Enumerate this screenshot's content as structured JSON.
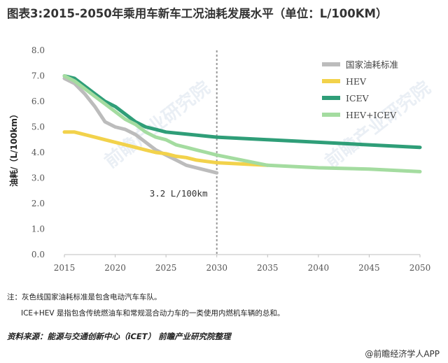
{
  "page": {
    "title": "图表3:2015-2050年乘用车新车工况油耗发展水平（单位：L/100KM）",
    "notes": [
      "注：灰色线国家油耗标准是包含电动汽车车队。",
      "ICE+HEV 是指包含传统燃油车和常规混合动力车的一类使用内燃机车辆的总和。"
    ],
    "source": "资料来源：能源与交通创新中心（iCET） 前瞻产业研究院整理",
    "brand": "@前瞻经济学人APP",
    "watermarks": [
      "前瞻产业研究院",
      "前瞻产业研究院"
    ]
  },
  "chart_data": {
    "type": "line",
    "ylabel": "油耗/（L/100km）",
    "xlabel": "",
    "x": [
      2015,
      2016,
      2017,
      2018,
      2019,
      2020,
      2021,
      2022,
      2023,
      2024,
      2025,
      2026,
      2027,
      2028,
      2029,
      2030,
      2035,
      2040,
      2045,
      2050
    ],
    "xticks": [
      2015,
      2020,
      2025,
      2030,
      2035,
      2040,
      2045,
      2050
    ],
    "xlim": [
      2015,
      2050
    ],
    "ylim": [
      0,
      8
    ],
    "yticks": [
      0,
      1,
      2,
      3,
      4,
      5,
      6,
      7,
      8
    ],
    "ytick_labels": [
      "0.0",
      "1.0",
      "2.0",
      "3.0",
      "4.0",
      "5.0",
      "6.0",
      "7.0",
      "8.0"
    ],
    "grid": false,
    "legend_position": "top-right",
    "series": [
      {
        "name": "国家油耗标准",
        "color": "#bcbcbc",
        "x": [
          2015,
          2016,
          2017,
          2018,
          2019,
          2020,
          2021,
          2022,
          2023,
          2024,
          2025,
          2026,
          2027,
          2028,
          2029,
          2030
        ],
        "values": [
          6.9,
          6.7,
          6.3,
          5.8,
          5.2,
          5.0,
          4.9,
          4.7,
          4.4,
          4.1,
          3.9,
          3.7,
          3.5,
          3.4,
          3.3,
          3.2
        ]
      },
      {
        "name": "HEV",
        "color": "#f2d24b",
        "x": [
          2015,
          2016,
          2017,
          2018,
          2019,
          2020,
          2021,
          2022,
          2023,
          2024,
          2025,
          2026,
          2027,
          2028,
          2029,
          2030,
          2035
        ],
        "values": [
          4.8,
          4.8,
          4.7,
          4.6,
          4.5,
          4.4,
          4.3,
          4.2,
          4.1,
          4.0,
          3.95,
          3.85,
          3.8,
          3.7,
          3.65,
          3.6,
          3.5
        ]
      },
      {
        "name": "ICEV",
        "color": "#2f9e78",
        "x": [
          2015,
          2016,
          2017,
          2018,
          2019,
          2020,
          2021,
          2022,
          2023,
          2024,
          2025,
          2030,
          2035,
          2040,
          2045,
          2050
        ],
        "values": [
          7.0,
          6.9,
          6.6,
          6.3,
          6.0,
          5.8,
          5.5,
          5.2,
          5.0,
          4.9,
          4.8,
          4.6,
          4.5,
          4.4,
          4.3,
          4.2
        ]
      },
      {
        "name": "HEV+ICEV",
        "color": "#a4dca0",
        "x": [
          2015,
          2016,
          2017,
          2018,
          2019,
          2020,
          2021,
          2022,
          2023,
          2024,
          2025,
          2026,
          2027,
          2028,
          2029,
          2030,
          2035,
          2040,
          2045,
          2050
        ],
        "values": [
          7.0,
          6.8,
          6.5,
          6.2,
          5.9,
          5.6,
          5.3,
          5.1,
          4.8,
          4.6,
          4.5,
          4.3,
          4.2,
          4.1,
          4.0,
          3.9,
          3.5,
          3.4,
          3.35,
          3.25
        ]
      }
    ],
    "reference_line": {
      "x": 2030,
      "style": "dashed"
    },
    "annotations": [
      {
        "text": "3.2 L/100km",
        "x": 2030,
        "y": 3.2
      }
    ]
  }
}
